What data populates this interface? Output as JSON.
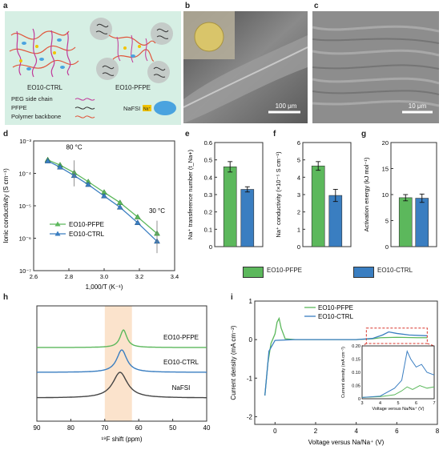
{
  "panel_labels": {
    "a": "a",
    "b": "b",
    "c": "c",
    "d": "d",
    "e": "e",
    "f": "f",
    "g": "g",
    "h": "h",
    "i": "i"
  },
  "panel_a": {
    "left_name": "EO10-CTRL",
    "right_name": "EO10-PFPE",
    "legend": [
      {
        "label": "PEG side chain",
        "color": "#c0399a"
      },
      {
        "label": "PFPE",
        "color": "#333333"
      },
      {
        "label": "Polymer backbone",
        "color": "#e0563b"
      }
    ],
    "salt_label": "NaFSI",
    "na_label": "Na⁺",
    "colors": {
      "bg": "#d6efe4",
      "peg": "#c0399a",
      "backbone": "#e0563b",
      "pfpe": "#333333"
    }
  },
  "panel_b": {
    "scalebar": "100 μm"
  },
  "panel_c": {
    "scalebar": "10 μm"
  },
  "chart_data": [
    {
      "id": "d",
      "type": "line",
      "xlabel": "1,000/T (K⁻¹)",
      "ylabel": "Ionic conductivity (S cm⁻¹)",
      "xlim": [
        2.6,
        3.4
      ],
      "ylim_log10": [
        -7,
        -3
      ],
      "xticks": [
        "2.6",
        "2.8",
        "3.0",
        "3.2",
        "3.4"
      ],
      "yticks": [
        "10⁻⁷",
        "10⁻⁶",
        "10⁻⁵",
        "10⁻⁴",
        "10⁻³"
      ],
      "annotations": [
        "80 °C",
        "30 °C"
      ],
      "series": [
        {
          "name": "EO10-PFPE",
          "color": "#5cb85c",
          "x": [
            2.68,
            2.75,
            2.83,
            2.91,
            3.0,
            3.09,
            3.19,
            3.3
          ],
          "y": [
            0.00026,
            0.00018,
            0.000105,
            5.5e-05,
            2.6e-05,
            1.25e-05,
            4.5e-06,
            1.4e-06
          ]
        },
        {
          "name": "EO10-CTRL",
          "color": "#3a7ec1",
          "x": [
            2.68,
            2.75,
            2.83,
            2.91,
            3.0,
            3.09,
            3.19,
            3.3
          ],
          "y": [
            0.00024,
            0.000155,
            8.5e-05,
            4.5e-05,
            2e-05,
            9e-06,
            3e-06,
            8e-07
          ]
        }
      ]
    },
    {
      "id": "e",
      "type": "bar",
      "ylabel": "Na⁺ transference number (t_Na+)",
      "ylim": [
        0,
        0.6
      ],
      "yticks": [
        "0",
        "0.1",
        "0.2",
        "0.3",
        "0.4",
        "0.5",
        "0.6"
      ],
      "categories": [
        "EO10-PFPE",
        "EO10-CTRL"
      ],
      "values": [
        0.46,
        0.33
      ],
      "errors": [
        0.03,
        0.015
      ]
    },
    {
      "id": "f",
      "type": "bar",
      "ylabel": "Na⁺ conductivity (×10⁻⁵ S cm⁻¹)",
      "ylim": [
        0,
        6
      ],
      "yticks": [
        "0",
        "1",
        "2",
        "3",
        "4",
        "5",
        "6"
      ],
      "categories": [
        "EO10-PFPE",
        "EO10-CTRL"
      ],
      "values": [
        4.65,
        2.95
      ],
      "errors": [
        0.25,
        0.35
      ]
    },
    {
      "id": "g",
      "type": "bar",
      "ylabel": "Activation energy (kJ mol⁻¹)",
      "ylim": [
        0,
        20
      ],
      "yticks": [
        "0",
        "5",
        "10",
        "15",
        "20"
      ],
      "categories": [
        "EO10-PFPE",
        "EO10-CTRL"
      ],
      "values": [
        9.4,
        9.3
      ],
      "errors": [
        0.6,
        0.8
      ]
    },
    {
      "id": "h",
      "type": "line",
      "xlabel": "¹⁹F shift (ppm)",
      "xlim": [
        90,
        40
      ],
      "xticks": [
        "90",
        "80",
        "70",
        "60",
        "50",
        "40"
      ],
      "highlight_ppm": [
        62,
        70
      ],
      "series": [
        {
          "name": "EO10-PFPE",
          "color": "#5cb85c",
          "peak_ppm": 64.5
        },
        {
          "name": "EO10-CTRL",
          "color": "#3a7ec1",
          "peak_ppm": 65.0
        },
        {
          "name": "NaFSI",
          "color": "#444444",
          "peak_ppm": 65.5
        }
      ]
    },
    {
      "id": "i",
      "type": "line",
      "xlabel": "Voltage versus Na/Na⁺ (V)",
      "ylabel": "Current density (mA cm⁻²)",
      "xlim": [
        -1,
        8
      ],
      "ylim": [
        -2.2,
        1.0
      ],
      "xticks": [
        "0",
        "2",
        "4",
        "6",
        "8"
      ],
      "yticks": [
        "-2",
        "-1",
        "0",
        "1"
      ],
      "series": [
        {
          "name": "EO10-PFPE",
          "color": "#5cb85c"
        },
        {
          "name": "EO10-CTRL",
          "color": "#3a7ec1"
        }
      ],
      "inset": {
        "xlabel": "Voltage versus Na/Na⁺ (V)",
        "ylabel": "Current density (mA cm⁻²)",
        "xlim": [
          3,
          7
        ],
        "ylim": [
          0,
          0.2
        ],
        "xticks": [
          "3",
          "4",
          "5",
          "6",
          "7"
        ],
        "yticks": [
          "0",
          "0.05",
          "0.10",
          "0.15",
          "0.20"
        ]
      }
    }
  ],
  "bar_legend": [
    {
      "label": "EO10-PFPE",
      "color": "#5cb85c"
    },
    {
      "label": "EO10-CTRL",
      "color": "#3a7ec1"
    }
  ]
}
